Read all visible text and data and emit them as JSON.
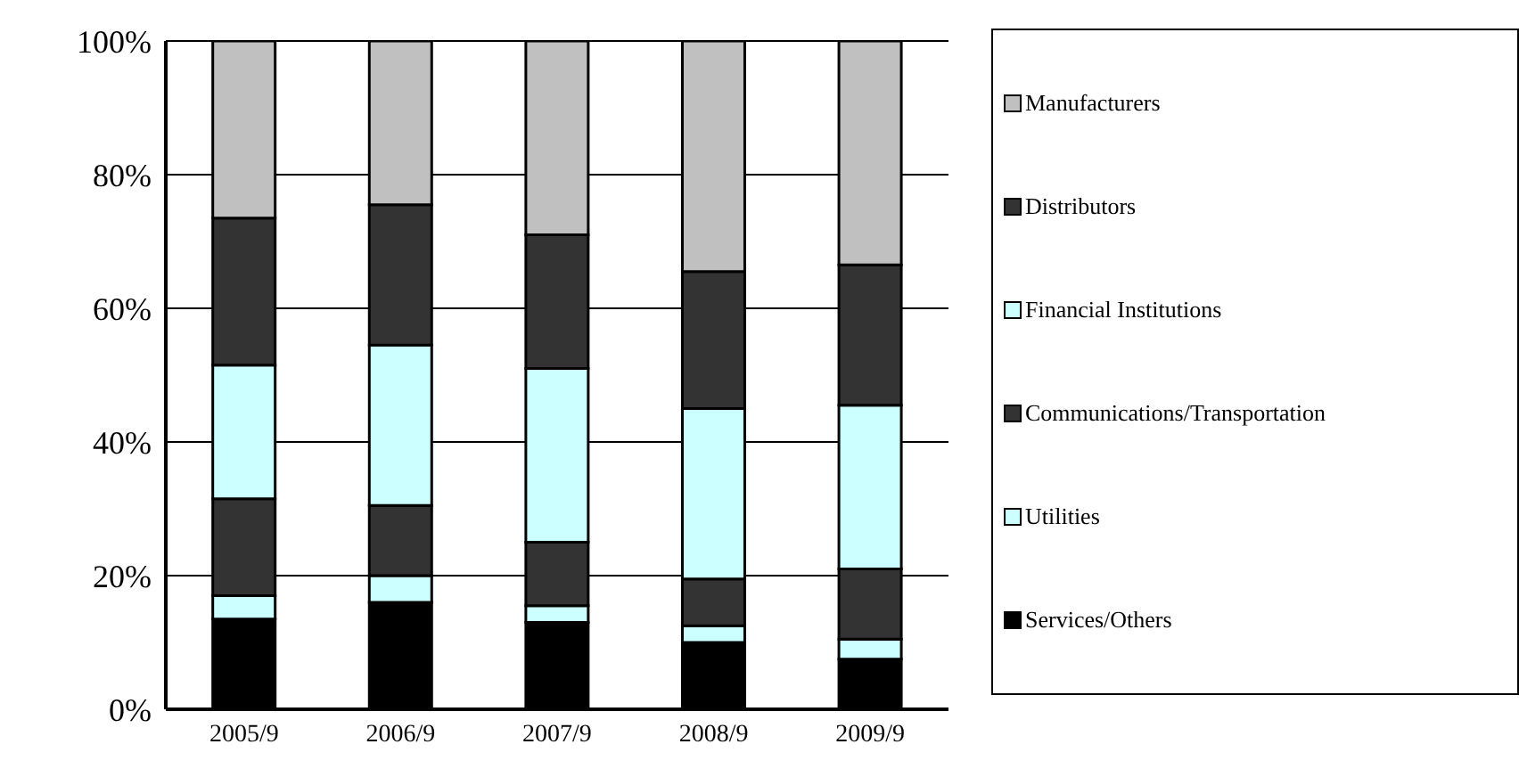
{
  "chart_data": {
    "type": "bar",
    "stacked": true,
    "categories": [
      "2005/9",
      "2006/9",
      "2007/9",
      "2008/9",
      "2009/9"
    ],
    "series": [
      {
        "name": "Services/Others",
        "color": "#000000",
        "values": [
          13.5,
          16,
          13,
          10,
          7.5
        ]
      },
      {
        "name": "Utilities",
        "color": "#ccffff",
        "values": [
          3.5,
          4,
          2.5,
          2.5,
          3
        ]
      },
      {
        "name": "Communications/Transportation",
        "color": "#333333",
        "values": [
          14.5,
          10.5,
          9.5,
          7,
          10.5
        ]
      },
      {
        "name": "Financial Institutions",
        "color": "#ccffff",
        "values": [
          20,
          24,
          26,
          25.5,
          24.5
        ]
      },
      {
        "name": "Distributors",
        "color": "#333333",
        "values": [
          22,
          21,
          20,
          20.5,
          21
        ]
      },
      {
        "name": "Manufacturers",
        "color": "#c0c0c0",
        "values": [
          26.5,
          24.5,
          29,
          34.5,
          33.5
        ]
      }
    ],
    "ylim": [
      0,
      100
    ],
    "yticks": [
      {
        "value": 0,
        "label": "0%"
      },
      {
        "value": 20,
        "label": "20%"
      },
      {
        "value": 40,
        "label": "40%"
      },
      {
        "value": 60,
        "label": "60%"
      },
      {
        "value": 80,
        "label": "80%"
      },
      {
        "value": 100,
        "label": "100%"
      }
    ],
    "grid": "y",
    "legend": "right"
  }
}
